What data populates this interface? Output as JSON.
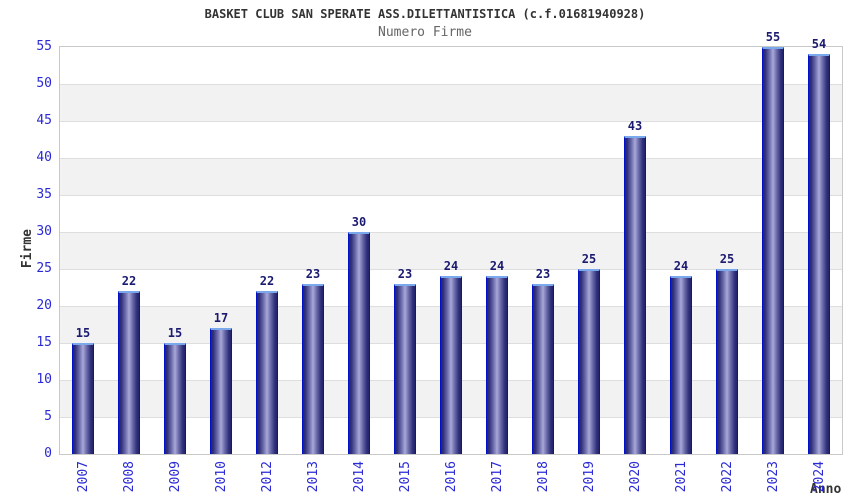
{
  "chart_data": {
    "type": "bar",
    "title": "BASKET CLUB SAN SPERATE ASS.DILETTANTISTICA (c.f.01681940928)",
    "subtitle": "Numero Firme",
    "xlabel": "Anno",
    "ylabel": "Firme",
    "categories": [
      "2007",
      "2008",
      "2009",
      "2010",
      "2012",
      "2013",
      "2014",
      "2015",
      "2016",
      "2017",
      "2018",
      "2019",
      "2020",
      "2021",
      "2022",
      "2023",
      "2024"
    ],
    "values": [
      15,
      22,
      15,
      17,
      22,
      23,
      30,
      23,
      24,
      24,
      23,
      25,
      43,
      24,
      25,
      55,
      54
    ],
    "ylim": [
      0,
      55
    ],
    "ytick_step": 5,
    "yticks": [
      0,
      5,
      10,
      15,
      20,
      25,
      30,
      35,
      40,
      45,
      50,
      55
    ],
    "grid": "alternating horizontal bands, white top band",
    "legend": "none",
    "bar_value_labels": true,
    "x_label_rotation_deg": -90
  },
  "colors": {
    "background": "#ffffff",
    "title": "#333333",
    "subtitle": "#666666",
    "band_gray": "#f2f2f2",
    "band_white": "#ffffff",
    "gridline": "#dedede",
    "plot_border": "#c9c9c9",
    "tick_label_blue": "#2a2ad6",
    "value_label_navy": "#1a1a70",
    "axis_label_dark": "#333333",
    "bar_border_blue": "#0011c8",
    "bar_top_cap": "#7aa8ec",
    "bar_dark": "#23236b",
    "bar_shade": "#32327c",
    "bar_mid": "#6b6baa",
    "bar_light": "#a8a8d8"
  }
}
